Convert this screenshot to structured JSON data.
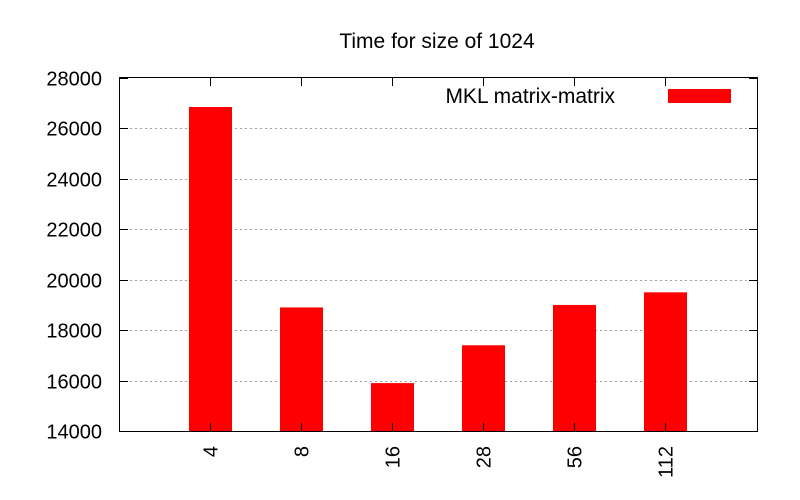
{
  "chart_data": {
    "type": "bar",
    "title": "Time for size of 1024",
    "xlabel": "",
    "ylabel": "",
    "categories": [
      "4",
      "8",
      "16",
      "28",
      "56",
      "112"
    ],
    "series": [
      {
        "name": "MKL matrix-matrix",
        "values": [
          26850,
          18900,
          15900,
          17400,
          19000,
          19500
        ],
        "color": "#ff0000"
      }
    ],
    "ylim": [
      14000,
      28000
    ],
    "yticks": [
      "14000",
      "16000",
      "18000",
      "20000",
      "22000",
      "24000",
      "26000",
      "28000"
    ],
    "grid": "horizontal dotted",
    "legend_position": "top-right"
  }
}
